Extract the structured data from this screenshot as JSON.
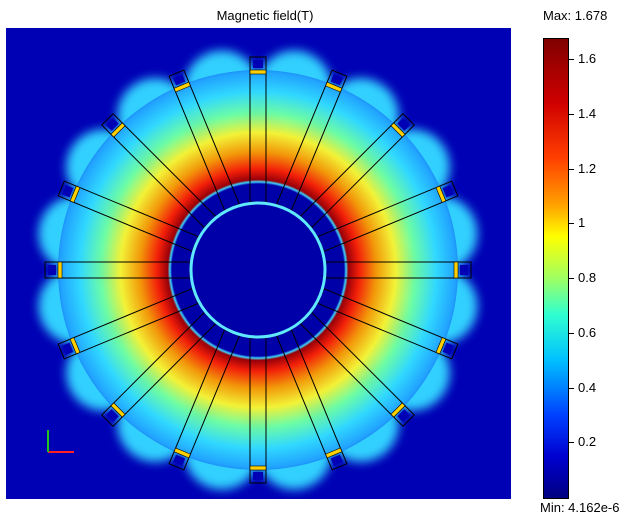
{
  "plot": {
    "title": "Magnetic field(T)"
  },
  "colorbar": {
    "max_label": "Max: 1.678",
    "min_label": "Min: 4.162e-6",
    "ticks": [
      "1.6",
      "1.4",
      "1.2",
      "1",
      "0.8",
      "0.6",
      "0.4",
      "0.2"
    ],
    "colors": [
      "#800000",
      "#d00000",
      "#ff4000",
      "#ffa000",
      "#ffff00",
      "#a0ff60",
      "#30ffd0",
      "#00c0ff",
      "#0040ff",
      "#0000d0",
      "#000080"
    ]
  },
  "scene": {
    "background_color": "#0000b4",
    "slot_count": 16,
    "axis_icon": "xy-axis-triad"
  }
}
